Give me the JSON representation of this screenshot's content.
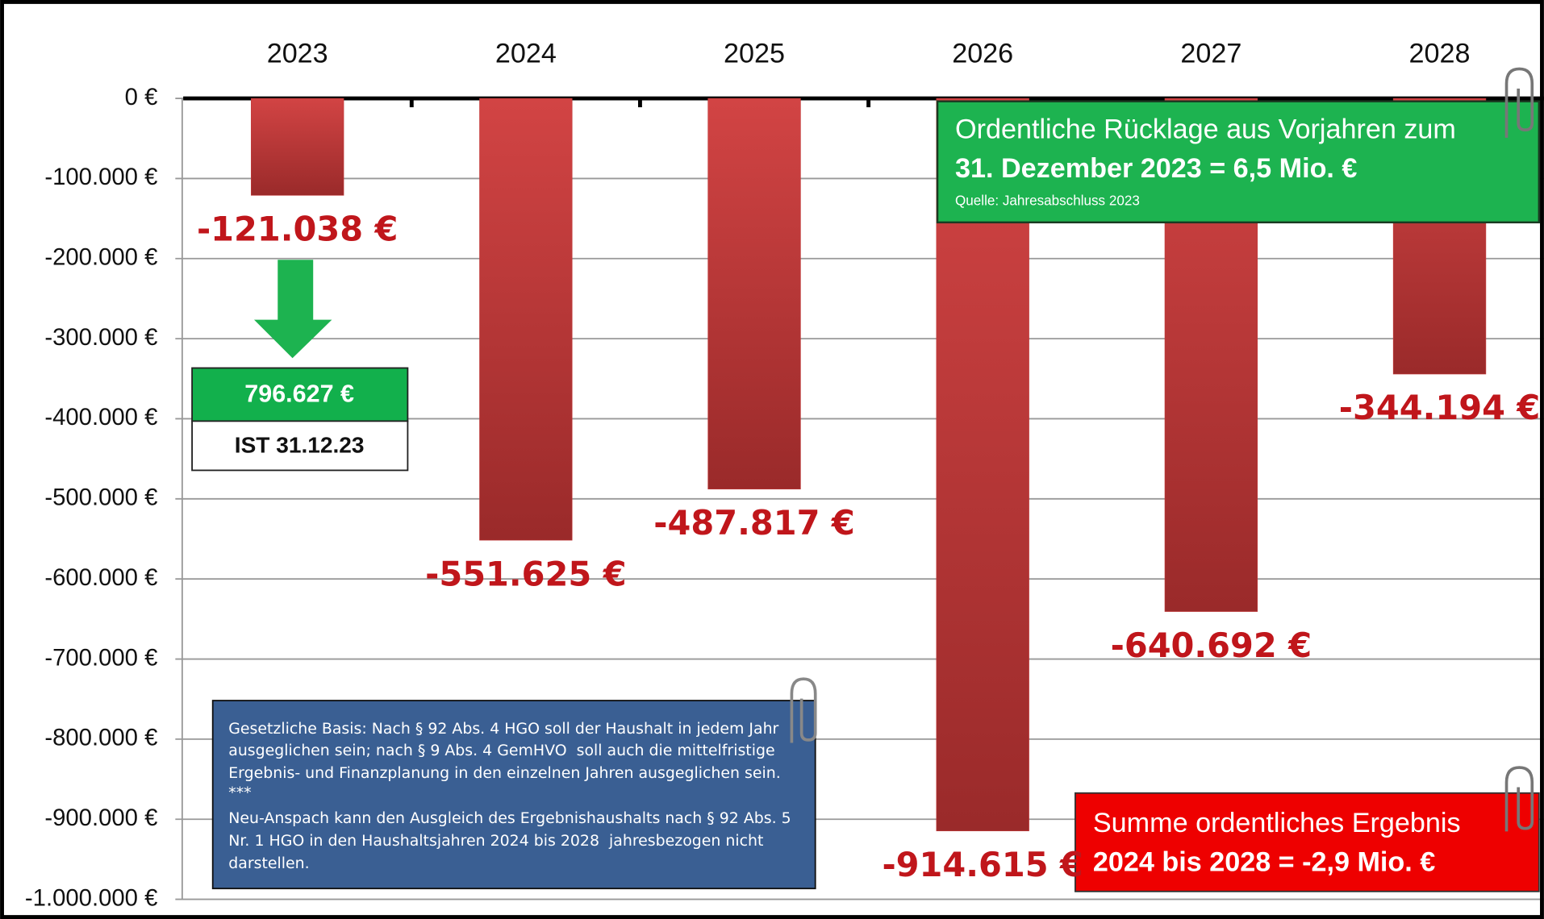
{
  "chart_data": {
    "type": "bar",
    "categories": [
      "2023",
      "2024",
      "2025",
      "2026",
      "2027",
      "2028"
    ],
    "values": [
      -121038,
      -551625,
      -487817,
      -914615,
      -640692,
      -344194
    ],
    "value_labels": [
      "-121.038 €",
      "-551.625 €",
      "-487.817 €",
      "-914.615 €",
      "-640.692 €",
      "-344.194 €"
    ],
    "color": "#c23a3a",
    "ylim": [
      -1000000,
      0
    ],
    "yticks": [
      {
        "value": 0,
        "label": "0 €"
      },
      {
        "value": -100000,
        "label": "-100.000 €"
      },
      {
        "value": -200000,
        "label": "-200.000 €"
      },
      {
        "value": -300000,
        "label": "-300.000 €"
      },
      {
        "value": -400000,
        "label": "-400.000 €"
      },
      {
        "value": -500000,
        "label": "-500.000 €"
      },
      {
        "value": -600000,
        "label": "-600.000 €"
      },
      {
        "value": -700000,
        "label": "-700.000 €"
      },
      {
        "value": -800000,
        "label": "-800.000 €"
      },
      {
        "value": -900000,
        "label": "-900.000 €"
      },
      {
        "value": -1000000,
        "label": "-1.000.000 €"
      }
    ],
    "grid": true,
    "annotations": {
      "ist_value": "796.627 €",
      "ist_label": "IST 31.12.23",
      "reserve": {
        "line1": "Ordentliche Rücklage aus Vorjahren zum",
        "line2": "31. Dezember 2023 = 6,5 Mio. €",
        "source": "Quelle: Jahresabschluss 2023"
      },
      "legal": [
        "Gesetzliche Basis: Nach § 92 Abs. 4 HGO soll der Haushalt in jedem Jahr",
        "ausgeglichen sein; nach § 9 Abs. 4 GemHVO  soll auch die mittelfristige",
        "Ergebnis- und Finanzplanung in den einzelnen Jahren ausgeglichen sein.",
        "***",
        "Neu-Anspach kann den Ausgleich des Ergebnishaushalts nach § 92 Abs. 5",
        "Nr. 1 HGO in den Haushaltsjahren 2024 bis 2028  jahresbezogen nicht",
        "darstellen."
      ],
      "sum": {
        "line1": "Summe ordentliches Ergebnis",
        "line2": "2024 bis 2028 = -2,9 Mio. €"
      }
    }
  }
}
